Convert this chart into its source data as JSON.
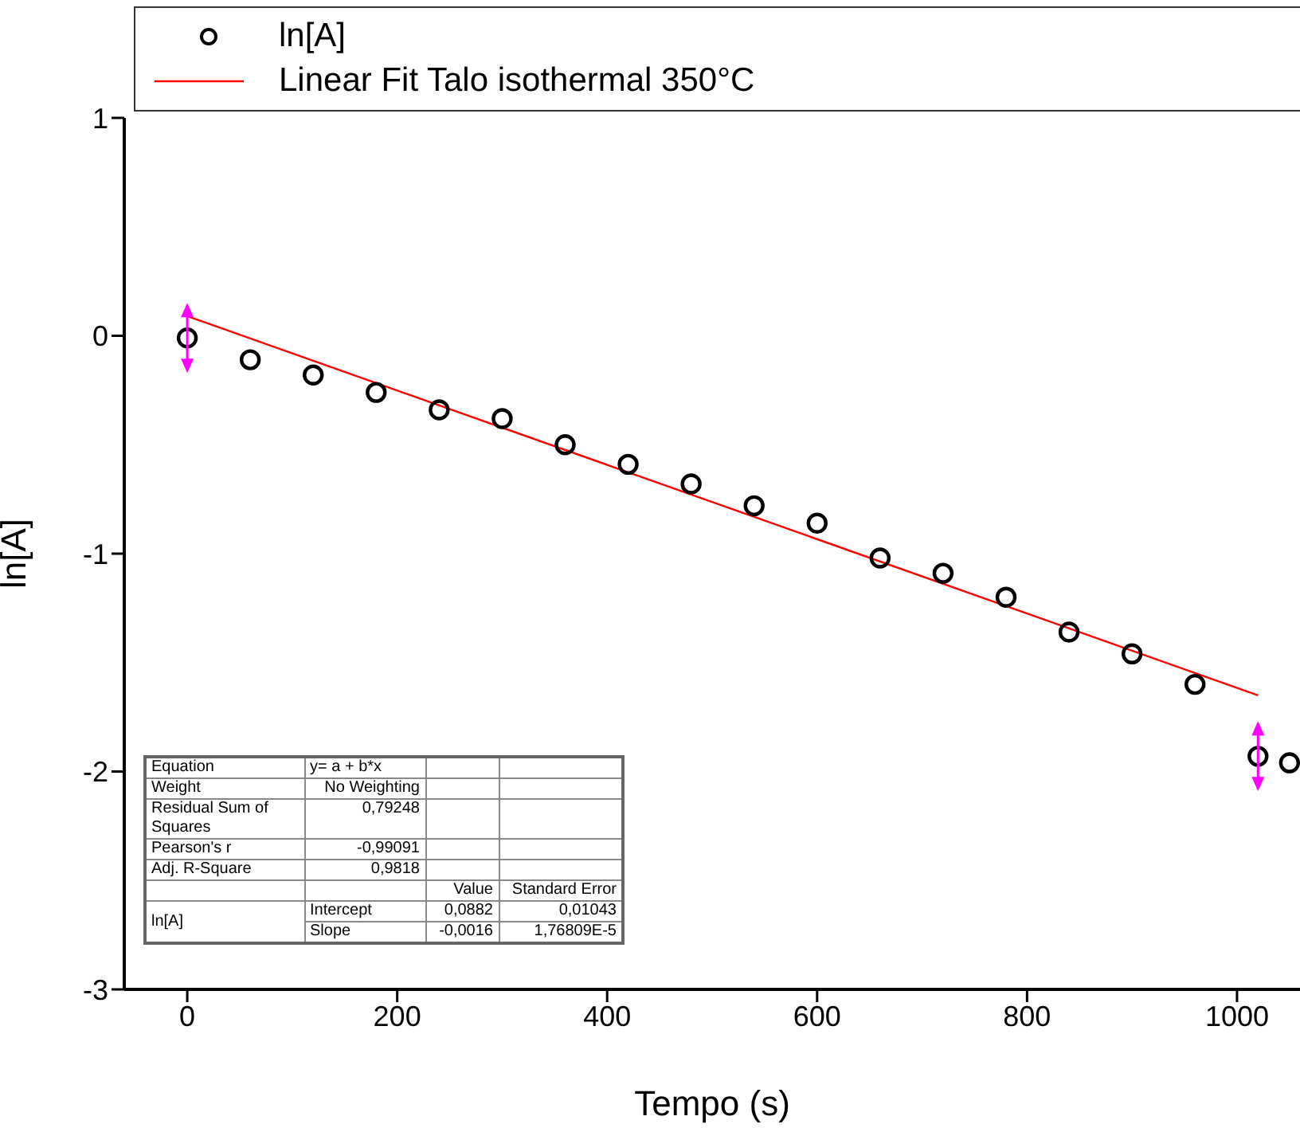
{
  "chart_data": {
    "type": "scatter",
    "xlabel": "Tempo (s)",
    "ylabel": "ln[A]",
    "xlim": [
      -60,
      1060
    ],
    "xticks": [
      0,
      200,
      400,
      600,
      800,
      1000
    ],
    "ylim": [
      -3,
      1
    ],
    "yticks": [
      -3,
      -2,
      -1,
      0,
      1
    ],
    "grid": false,
    "legend": "top",
    "marker": "circle",
    "series": [
      {
        "name": "ln[A]",
        "color": "#000000",
        "x": [
          0,
          60,
          120,
          180,
          240,
          300,
          360,
          420,
          480,
          540,
          600,
          660,
          720,
          780,
          840,
          900,
          960,
          1020,
          1050
        ],
        "values": [
          -0.01,
          -0.11,
          -0.18,
          -0.26,
          -0.34,
          -0.38,
          -0.5,
          -0.59,
          -0.68,
          -0.78,
          -0.86,
          -1.02,
          -1.09,
          -1.2,
          -1.36,
          -1.46,
          -1.6,
          -1.93,
          -1.96
        ]
      },
      {
        "name": "Linear Fit Talo isothermal 350°C",
        "type": "line",
        "marker": "none",
        "color": "#ff0000",
        "x": [
          0,
          1020
        ],
        "values": [
          0.09,
          -1.65
        ]
      }
    ],
    "annotations": [
      "Equation",
      "y= a + b*x",
      "Weight",
      "No Weighting",
      "Residual Sum of Squares",
      "0,79248",
      "Pearson's r",
      "-0,99091",
      "Adj. R-Square",
      "0,9818",
      "Value",
      "Standard Error",
      "ln[A]",
      "Intercept",
      "0,0882",
      "0,01043",
      "Slope",
      "-0,0016",
      "1,76809E-5"
    ]
  }
}
